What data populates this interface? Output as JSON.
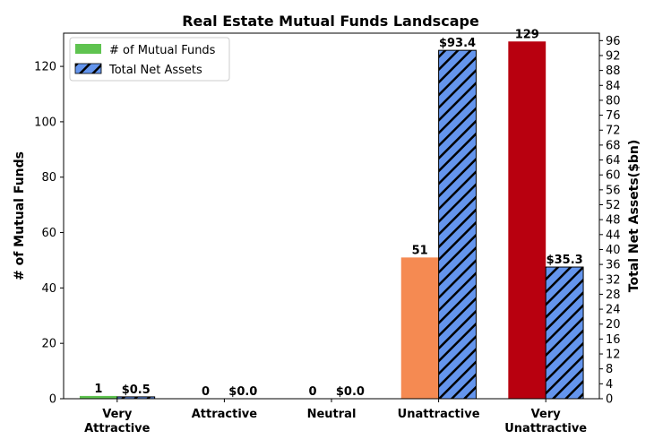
{
  "chart_data": {
    "type": "bar",
    "title": "Real Estate Mutual Funds Landscape",
    "categories": [
      "Very\nAttractive",
      "Attractive",
      "Neutral",
      "Unattractive",
      "Very\nUnattractive"
    ],
    "ylabel_left": "# of Mutual Funds",
    "ylabel_right": "Total Net Assets($bn)",
    "xlabel": "",
    "ylim_left": [
      0,
      132
    ],
    "ylim_right": [
      0,
      98
    ],
    "yticks_left": [
      0,
      20,
      40,
      60,
      80,
      100,
      120
    ],
    "yticks_right": [
      0,
      4,
      8,
      12,
      16,
      20,
      24,
      28,
      32,
      36,
      40,
      44,
      48,
      52,
      56,
      60,
      64,
      68,
      72,
      76,
      80,
      84,
      88,
      92,
      96
    ],
    "grid": false,
    "legend_position": "top-left",
    "series": [
      {
        "name": "# of Mutual Funds",
        "axis": "left",
        "values": [
          1,
          0,
          0,
          51,
          129
        ],
        "labels": [
          "1",
          "0",
          "0",
          "51",
          "129"
        ],
        "bar_colors": [
          "#5fc350",
          "#8fd18a",
          "#cccccc",
          "#f58a52",
          "#b8000f"
        ],
        "legend_color": "#5fc350"
      },
      {
        "name": "Total Net Assets",
        "axis": "right",
        "values": [
          0.5,
          0.0,
          0.0,
          93.4,
          35.3
        ],
        "labels": [
          "$0.5",
          "$0.0",
          "$0.0",
          "$93.4",
          "$35.3"
        ],
        "color": "#6495ed",
        "pattern": "diagonal-hatch"
      }
    ]
  }
}
